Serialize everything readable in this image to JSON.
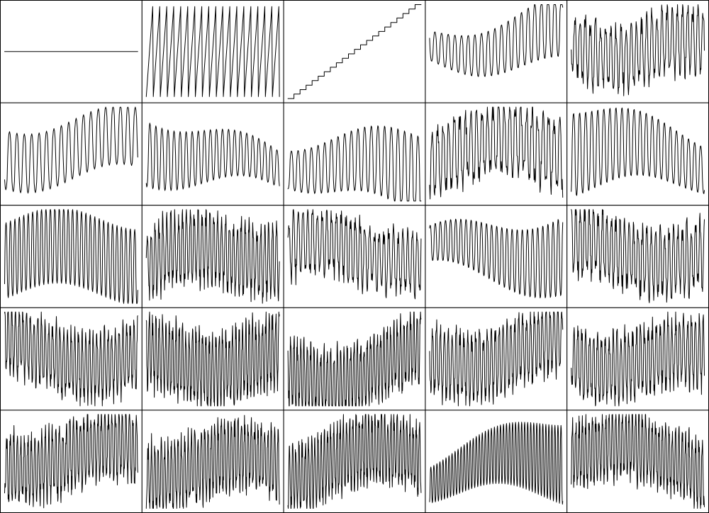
{
  "chart_data": {
    "type": "line",
    "layout": {
      "rows": 5,
      "cols": 5
    },
    "title": "",
    "xlabel": "",
    "ylabel": "",
    "grid": false,
    "legend": "none",
    "colors": {
      "line": "#000000",
      "border": "#000000",
      "background": "#ffffff"
    },
    "panels": [
      {
        "id": "r1c1",
        "shape": "constant",
        "amp": 0,
        "base": 0.5,
        "periods": 0,
        "trend": 0
      },
      {
        "id": "r1c2",
        "shape": "sawtooth",
        "amp": 0.96,
        "base": 0.5,
        "periods": 19,
        "trend": 0
      },
      {
        "id": "r1c3",
        "shape": "staircase",
        "steps": 22,
        "ylim": [
          0,
          1
        ]
      },
      {
        "id": "r1c4",
        "shape": "modulated",
        "amp": 0.35,
        "base": 0.6,
        "periods": 20,
        "trend": 0.15,
        "envelope": "grow"
      },
      {
        "id": "r1c5",
        "shape": "modulated",
        "amp": 0.4,
        "base": 0.55,
        "periods": 26,
        "trend": -0.1,
        "envelope": "noisy"
      },
      {
        "id": "r2c1",
        "shape": "modulated",
        "amp": 0.35,
        "base": 0.55,
        "periods": 18,
        "trend": 0.1,
        "envelope": "flat"
      },
      {
        "id": "r2c2",
        "shape": "modulated",
        "amp": 0.35,
        "base": 0.45,
        "periods": 22,
        "trend": -0.3,
        "envelope": "decay"
      },
      {
        "id": "r2c3",
        "shape": "modulated",
        "amp": 0.45,
        "base": 0.35,
        "periods": 20,
        "trend": -0.2,
        "envelope": "grow"
      },
      {
        "id": "r2c4",
        "shape": "modulated",
        "amp": 0.45,
        "base": 0.55,
        "periods": 24,
        "trend": 0,
        "envelope": "noisy"
      },
      {
        "id": "r2c5",
        "shape": "modulated",
        "amp": 0.45,
        "base": 0.5,
        "periods": 22,
        "trend": -0.15,
        "envelope": "decay"
      },
      {
        "id": "r3c1",
        "shape": "modulated",
        "amp": 0.45,
        "base": 0.5,
        "periods": 30,
        "trend": 0,
        "envelope": "flat"
      },
      {
        "id": "r3c2",
        "shape": "modulated",
        "amp": 0.45,
        "base": 0.5,
        "periods": 34,
        "trend": 0.15,
        "envelope": "noisy"
      },
      {
        "id": "r3c3",
        "shape": "modulated",
        "amp": 0.4,
        "base": 0.55,
        "periods": 28,
        "trend": 0,
        "envelope": "noisy"
      },
      {
        "id": "r3c4",
        "shape": "modulated",
        "amp": 0.42,
        "base": 0.55,
        "periods": 26,
        "trend": 0,
        "envelope": "grow"
      },
      {
        "id": "r3c5",
        "shape": "modulated",
        "amp": 0.42,
        "base": 0.55,
        "periods": 30,
        "trend": 0,
        "envelope": "noisy"
      },
      {
        "id": "r4c1",
        "shape": "modulated",
        "amp": 0.42,
        "base": 0.55,
        "periods": 36,
        "trend": -0.1,
        "envelope": "noisy"
      },
      {
        "id": "r4c2",
        "shape": "modulated",
        "amp": 0.45,
        "base": 0.5,
        "periods": 40,
        "trend": 0.05,
        "envelope": "noisy"
      },
      {
        "id": "r4c3",
        "shape": "modulated",
        "amp": 0.42,
        "base": 0.4,
        "periods": 40,
        "trend": 0.25,
        "envelope": "noisy"
      },
      {
        "id": "r4c4",
        "shape": "modulated",
        "amp": 0.42,
        "base": 0.55,
        "periods": 34,
        "trend": 0.1,
        "envelope": "noisy"
      },
      {
        "id": "r4c5",
        "shape": "modulated",
        "amp": 0.42,
        "base": 0.5,
        "periods": 34,
        "trend": -0.1,
        "envelope": "noisy"
      },
      {
        "id": "r5c1",
        "shape": "modulated",
        "amp": 0.42,
        "base": 0.55,
        "periods": 38,
        "trend": 0.05,
        "envelope": "noisy"
      },
      {
        "id": "r5c2",
        "shape": "modulated",
        "amp": 0.42,
        "base": 0.45,
        "periods": 40,
        "trend": 0,
        "envelope": "noisy"
      },
      {
        "id": "r5c3",
        "shape": "modulated",
        "amp": 0.42,
        "base": 0.5,
        "periods": 42,
        "trend": 0.15,
        "envelope": "noisy"
      },
      {
        "id": "r5c4",
        "shape": "modulated",
        "amp": 0.42,
        "base": 0.45,
        "periods": 44,
        "trend": 0.2,
        "envelope": "grow"
      },
      {
        "id": "r5c5",
        "shape": "modulated",
        "amp": 0.42,
        "base": 0.55,
        "periods": 40,
        "trend": -0.15,
        "envelope": "noisy"
      }
    ]
  }
}
